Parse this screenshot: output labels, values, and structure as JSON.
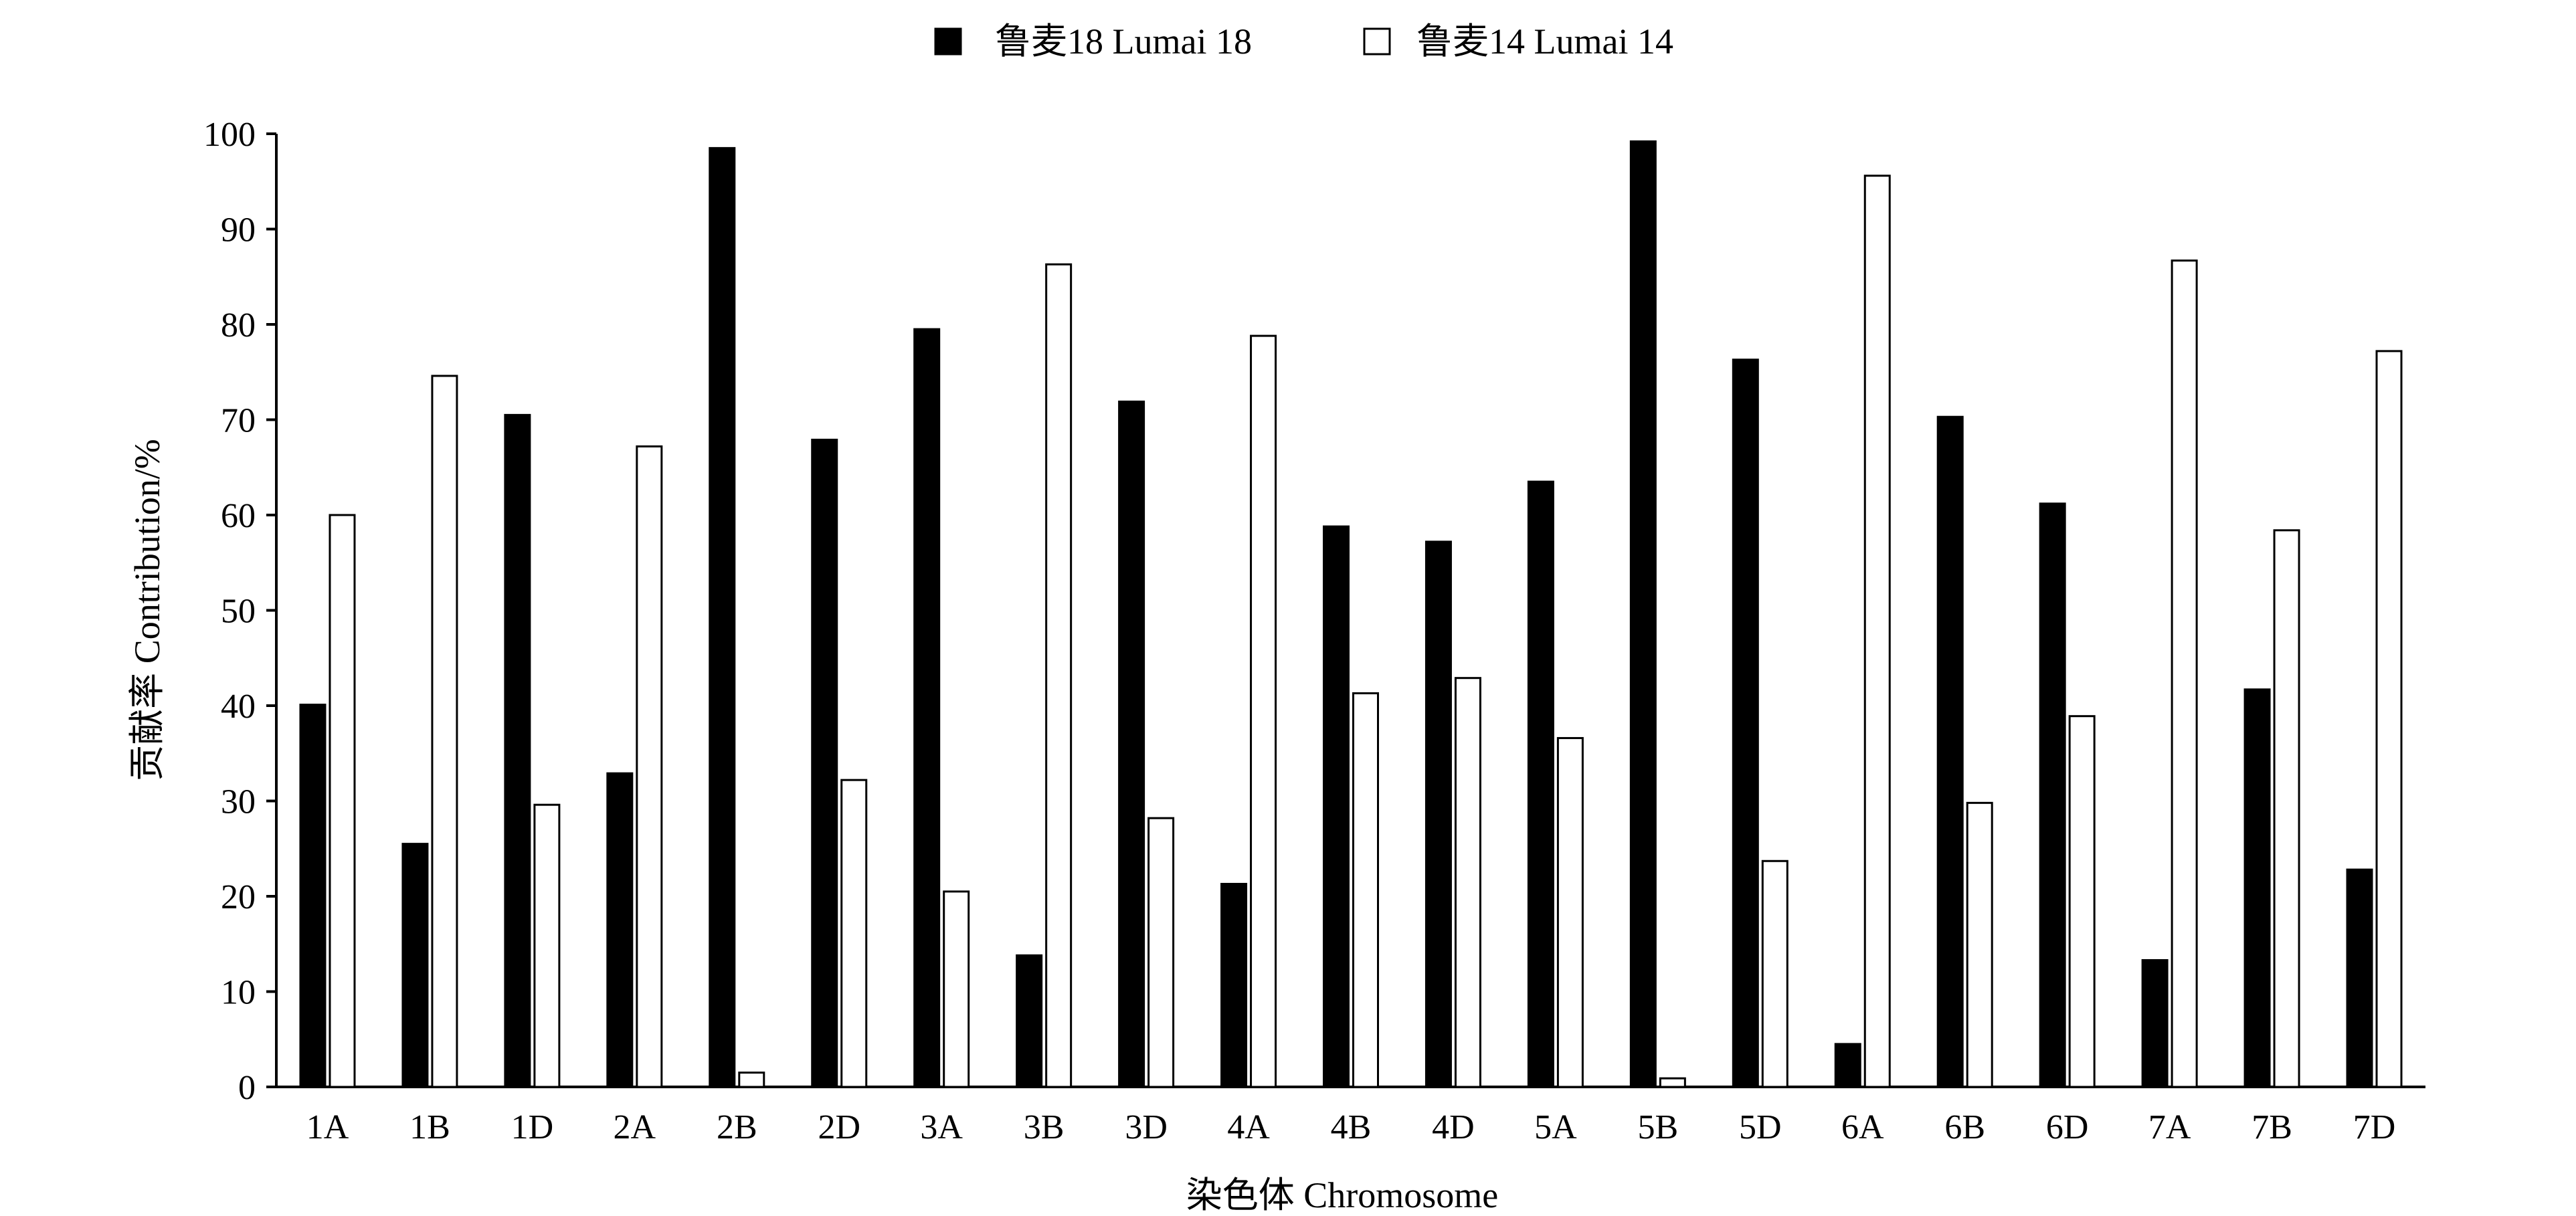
{
  "legend": {
    "series_a_label": "鲁麦18 Lumai 18",
    "series_b_label": "鲁麦14 Lumai 14"
  },
  "colors": {
    "series_a_fill": "#000000",
    "series_b_fill": "#ffffff",
    "stroke": "#000000"
  },
  "chart_data": {
    "type": "bar",
    "title": "",
    "xlabel": "染色体 Chromosome",
    "ylabel": "贡献率 Contribution/%",
    "ylim": [
      0,
      100
    ],
    "yticks": [
      "0",
      "10",
      "20",
      "30",
      "40",
      "50",
      "60",
      "70",
      "80",
      "90",
      "100"
    ],
    "grid": false,
    "legend_position": "top-center",
    "categories": [
      "1A",
      "1B",
      "1D",
      "2A",
      "2B",
      "2D",
      "3A",
      "3B",
      "3D",
      "4A",
      "4B",
      "4D",
      "5A",
      "5B",
      "5D",
      "6A",
      "6B",
      "6D",
      "7A",
      "7B",
      "7D"
    ],
    "series": [
      {
        "name": "鲁麦18 Lumai 18",
        "values": [
          40.1,
          25.5,
          70.5,
          32.9,
          98.5,
          67.9,
          79.5,
          13.8,
          71.9,
          21.3,
          58.8,
          57.2,
          63.5,
          99.2,
          76.3,
          4.5,
          70.3,
          61.2,
          13.3,
          41.7,
          22.8
        ]
      },
      {
        "name": "鲁麦14 Lumai 14",
        "values": [
          60.0,
          74.6,
          29.6,
          67.2,
          1.5,
          32.2,
          20.5,
          86.3,
          28.2,
          78.8,
          41.3,
          42.9,
          36.6,
          0.9,
          23.7,
          95.6,
          29.8,
          38.9,
          86.7,
          58.4,
          77.2
        ]
      }
    ]
  }
}
